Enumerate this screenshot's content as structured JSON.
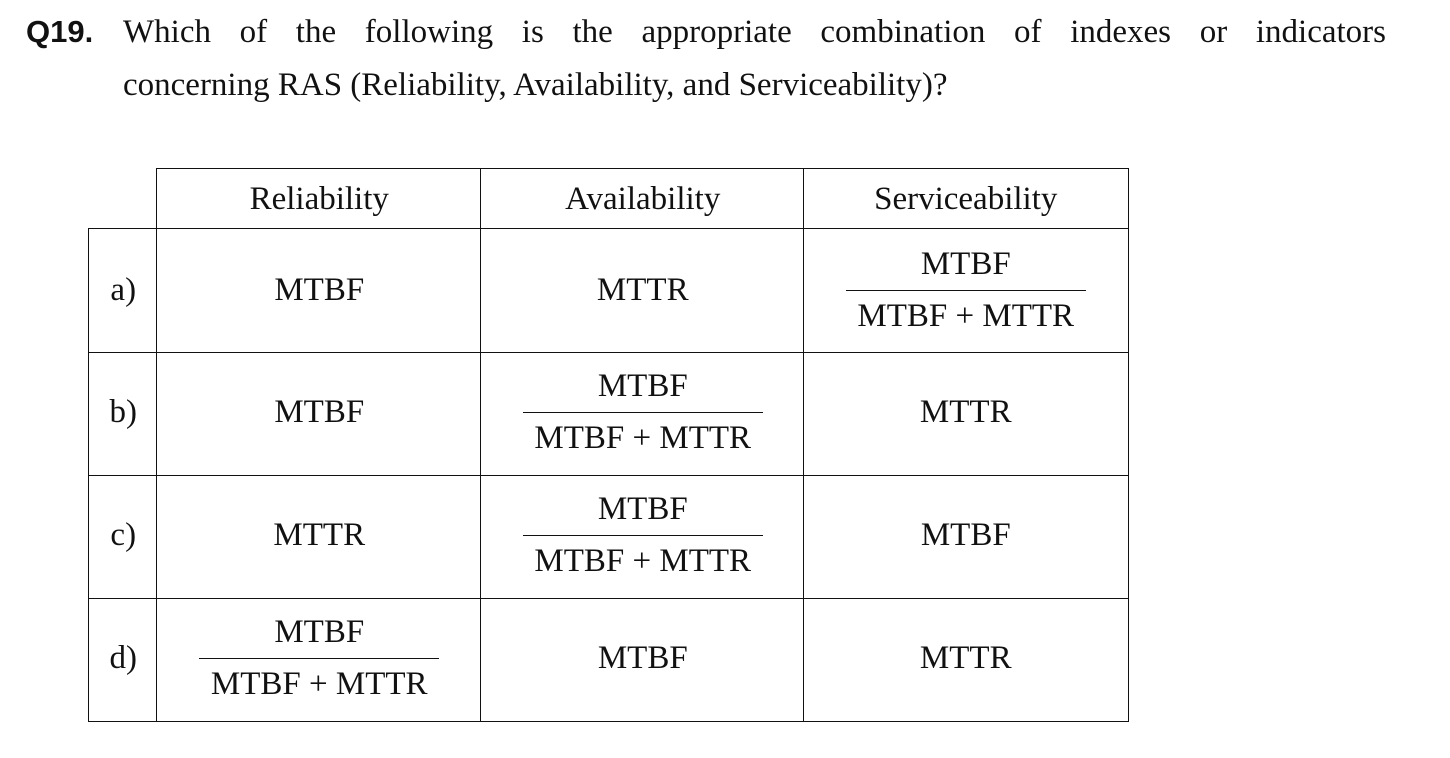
{
  "question": {
    "number": "Q19.",
    "line1": "Which of the following is the appropriate combination of indexes or indicators",
    "line2": "concerning RAS (Reliability, Availability, and Serviceability)?"
  },
  "table": {
    "headers": [
      "Reliability",
      "Availability",
      "Serviceability"
    ],
    "rows": [
      {
        "label": "a)",
        "reliability": {
          "type": "text",
          "value": "MTBF"
        },
        "availability": {
          "type": "text",
          "value": "MTTR"
        },
        "serviceability": {
          "type": "fraction",
          "numerator": "MTBF",
          "denominator": "MTBF + MTTR"
        }
      },
      {
        "label": "b)",
        "reliability": {
          "type": "text",
          "value": "MTBF"
        },
        "availability": {
          "type": "fraction",
          "numerator": "MTBF",
          "denominator": "MTBF + MTTR"
        },
        "serviceability": {
          "type": "text",
          "value": "MTTR"
        }
      },
      {
        "label": "c)",
        "reliability": {
          "type": "text",
          "value": "MTTR"
        },
        "availability": {
          "type": "fraction",
          "numerator": "MTBF",
          "denominator": "MTBF + MTTR"
        },
        "serviceability": {
          "type": "text",
          "value": "MTBF"
        }
      },
      {
        "label": "d)",
        "reliability": {
          "type": "fraction",
          "numerator": "MTBF",
          "denominator": "MTBF + MTTR"
        },
        "availability": {
          "type": "text",
          "value": "MTBF"
        },
        "serviceability": {
          "type": "text",
          "value": "MTTR"
        }
      }
    ]
  }
}
